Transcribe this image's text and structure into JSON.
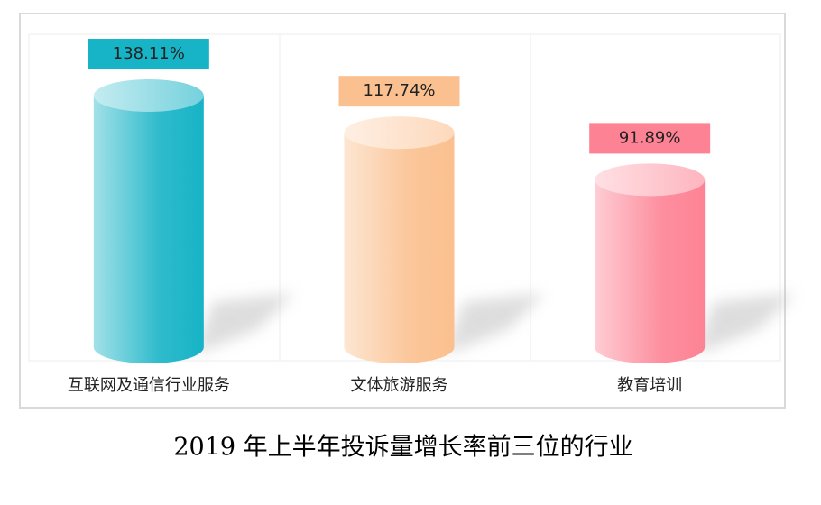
{
  "chart_data": {
    "type": "bar",
    "title": "2019 年上半年投诉量增长率前三位的行业",
    "categories": [
      "互联网及通信行业服务",
      "文体旅游服务",
      "教育培训"
    ],
    "values": [
      138.11,
      117.74,
      91.89
    ],
    "value_labels": [
      "138.11%",
      "117.74%",
      "91.89%"
    ],
    "colors": [
      "#17b3c6",
      "#fbc08f",
      "#fd8394"
    ]
  }
}
